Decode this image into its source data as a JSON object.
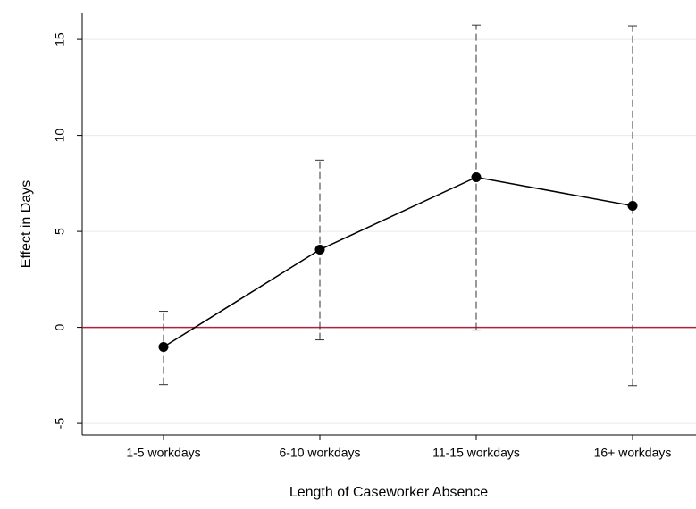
{
  "chart_data": {
    "type": "line",
    "x_label": "Length of Caseworker Absence",
    "y_label": "Effect in Days",
    "categories": [
      "1-5 workdays",
      "6-10 workdays",
      "11-15 workdays",
      "16+ workdays"
    ],
    "values": [
      -1.02,
      4.05,
      7.82,
      6.33
    ],
    "ci_low": [
      -2.98,
      -0.65,
      -0.14,
      -3.03
    ],
    "ci_high": [
      0.84,
      8.71,
      15.74,
      15.7
    ],
    "color": "#000000",
    "reference_line": {
      "value": 0,
      "color": "#b0203a"
    },
    "ylim": [
      -5.6,
      16.4
    ],
    "yticks": [
      -5,
      0,
      5,
      10,
      15
    ],
    "grid": true
  }
}
